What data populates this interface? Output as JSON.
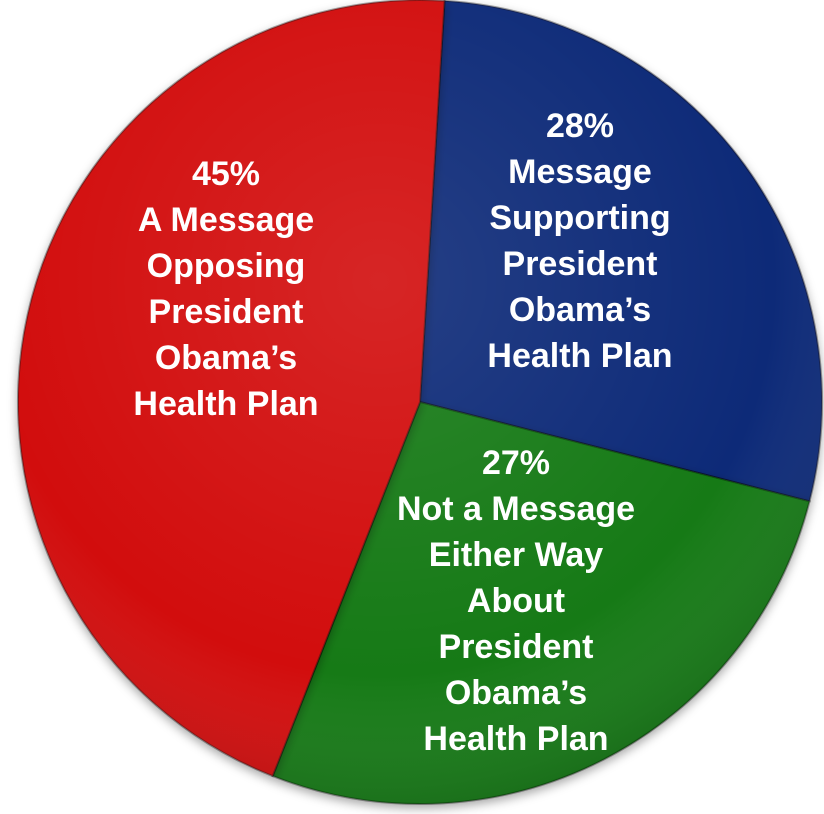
{
  "chart_data": {
    "type": "pie",
    "title": "",
    "legend": "none",
    "slices": [
      {
        "value": 28,
        "color": "#112a78",
        "label_lines": [
          "28%",
          "Message",
          "Supporting",
          "President",
          "Obama’s",
          "Health Plan"
        ]
      },
      {
        "value": 27,
        "color": "#127a12",
        "label_lines": [
          "27%",
          "Not a Message",
          "Either Way",
          "About",
          "President",
          "Obama’s",
          "Health Plan"
        ]
      },
      {
        "value": 45,
        "color": "#d20c0c",
        "label_lines": [
          "45%",
          "A Message",
          "Opposing",
          "President",
          "Obama’s",
          "Health Plan"
        ]
      }
    ]
  }
}
